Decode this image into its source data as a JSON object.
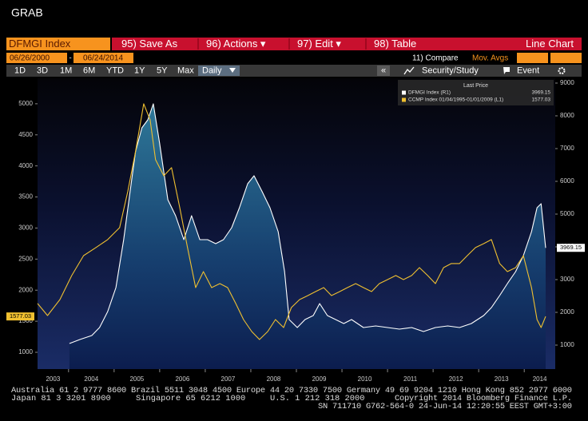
{
  "header": {
    "title": "GRAB"
  },
  "toolbar": {
    "security": "DFMGI Index",
    "buttons": [
      "95) Save As",
      "96) Actions ▾",
      "97) Edit ▾",
      "98) Table"
    ],
    "chart_type": "Line Chart"
  },
  "dates": {
    "start": "06/26/2000",
    "separator": "-",
    "end": "06/24/2014"
  },
  "controls": {
    "compare": "11) Compare",
    "mov_avgs": "Mov. Avgs"
  },
  "periods": [
    "1D",
    "3D",
    "1M",
    "6M",
    "YTD",
    "1Y",
    "5Y",
    "Max"
  ],
  "frequency": "Daily",
  "tools": {
    "collapse": "«",
    "study": "Security/Study",
    "event": "Event"
  },
  "chart_data": {
    "type": "line",
    "legend": {
      "title": "Last Price",
      "position": "upper right"
    },
    "xlim": [
      2003.32,
      2014.68
    ],
    "xticks": [
      2003,
      2004,
      2005,
      2006,
      2007,
      2008,
      2009,
      2010,
      2011,
      2012,
      2013,
      2014
    ],
    "ylim": [
      730,
      5410
    ],
    "yticks": [
      1000,
      1500,
      2000,
      2500,
      3000,
      3500,
      4000,
      4500,
      5000
    ],
    "y2lim": [
      268,
      9146
    ],
    "y2ticks": [
      1000,
      2000,
      3000,
      4000,
      5000,
      6000,
      7000,
      8000,
      9000
    ],
    "grid": false,
    "series": [
      {
        "name": "DFMGI Index  (R1)",
        "color": "#ffffff",
        "axis": "y2",
        "fill": true,
        "value_label": "3969.15",
        "x": [
          2004.02,
          2004.25,
          2004.51,
          2004.68,
          2004.86,
          2005.04,
          2005.21,
          2005.35,
          2005.47,
          2005.61,
          2005.74,
          2005.86,
          2006.0,
          2006.18,
          2006.35,
          2006.53,
          2006.7,
          2006.88,
          2007.05,
          2007.23,
          2007.4,
          2007.58,
          2007.75,
          2007.93,
          2008.07,
          2008.25,
          2008.42,
          2008.6,
          2008.74,
          2008.84,
          2009.02,
          2009.19,
          2009.37,
          2009.51,
          2009.68,
          2009.86,
          2010.04,
          2010.21,
          2010.47,
          2010.74,
          2011.0,
          2011.26,
          2011.53,
          2011.79,
          2012.05,
          2012.32,
          2012.58,
          2012.84,
          2013.11,
          2013.28,
          2013.46,
          2013.63,
          2013.81,
          2013.98,
          2014.16,
          2014.28,
          2014.37,
          2014.47
        ],
        "values": [
          1049,
          1171,
          1293,
          1537,
          2024,
          2756,
          4220,
          5683,
          6902,
          7634,
          7878,
          8366,
          7146,
          5439,
          4951,
          4220,
          4951,
          4220,
          4220,
          4098,
          4220,
          4585,
          5195,
          5927,
          6171,
          5683,
          5195,
          4463,
          3244,
          1780,
          1537,
          1780,
          1902,
          2268,
          1902,
          1780,
          1659,
          1780,
          1537,
          1585,
          1537,
          1488,
          1537,
          1415,
          1537,
          1585,
          1537,
          1659,
          1902,
          2146,
          2512,
          2878,
          3244,
          3732,
          4463,
          5195,
          5317,
          3969.15
        ]
      },
      {
        "name": "CCMP Index 01/04/1995-01/01/2009  (L1)",
        "color": "#f0c030",
        "axis": "y",
        "fill": false,
        "value_label": "1577.03",
        "x": [
          2003.32,
          2003.54,
          2003.81,
          2004.07,
          2004.33,
          2004.6,
          2004.86,
          2005.12,
          2005.3,
          2005.47,
          2005.65,
          2005.79,
          2005.91,
          2006.09,
          2006.26,
          2006.44,
          2006.61,
          2006.79,
          2006.96,
          2007.14,
          2007.32,
          2007.49,
          2007.67,
          2007.84,
          2008.02,
          2008.19,
          2008.37,
          2008.54,
          2008.72,
          2008.89,
          2009.07,
          2009.25,
          2009.42,
          2009.6,
          2009.77,
          2009.95,
          2010.12,
          2010.3,
          2010.47,
          2010.65,
          2010.82,
          2011.0,
          2011.18,
          2011.35,
          2011.53,
          2011.7,
          2011.88,
          2012.05,
          2012.23,
          2012.4,
          2012.58,
          2012.75,
          2012.93,
          2013.11,
          2013.28,
          2013.46,
          2013.63,
          2013.81,
          2013.98,
          2014.16,
          2014.28,
          2014.37,
          2014.47
        ],
        "values": [
          1785,
          1592,
          1849,
          2235,
          2556,
          2685,
          2814,
          3006,
          3585,
          4228,
          5000,
          4743,
          4100,
          3842,
          3971,
          3328,
          2685,
          2042,
          2299,
          2042,
          2106,
          2042,
          1785,
          1527,
          1334,
          1206,
          1334,
          1527,
          1399,
          1720,
          1849,
          1913,
          1977,
          2042,
          1913,
          1977,
          2042,
          2106,
          2042,
          1977,
          2106,
          2170,
          2235,
          2170,
          2235,
          2363,
          2235,
          2106,
          2363,
          2428,
          2428,
          2556,
          2685,
          2749,
          2814,
          2428,
          2299,
          2363,
          2556,
          2042,
          1527,
          1399,
          1577.03
        ]
      }
    ]
  },
  "footer": {
    "line1": "Australia 61 2 9777 8600 Brazil 5511 3048 4500 Europe 44 20 7330 7500 Germany 49 69 9204 1210 Hong Kong 852 2977 6000",
    "line2": [
      "Japan 81 3 3201 8900",
      "Singapore 65 6212 1000",
      "U.S. 1 212 318 2000",
      "Copyright 2014 Bloomberg Finance L.P."
    ],
    "line3": "SN 711710 G762-564-0 24-Jun-14 12:20:55 EEST GMT+3:00"
  }
}
